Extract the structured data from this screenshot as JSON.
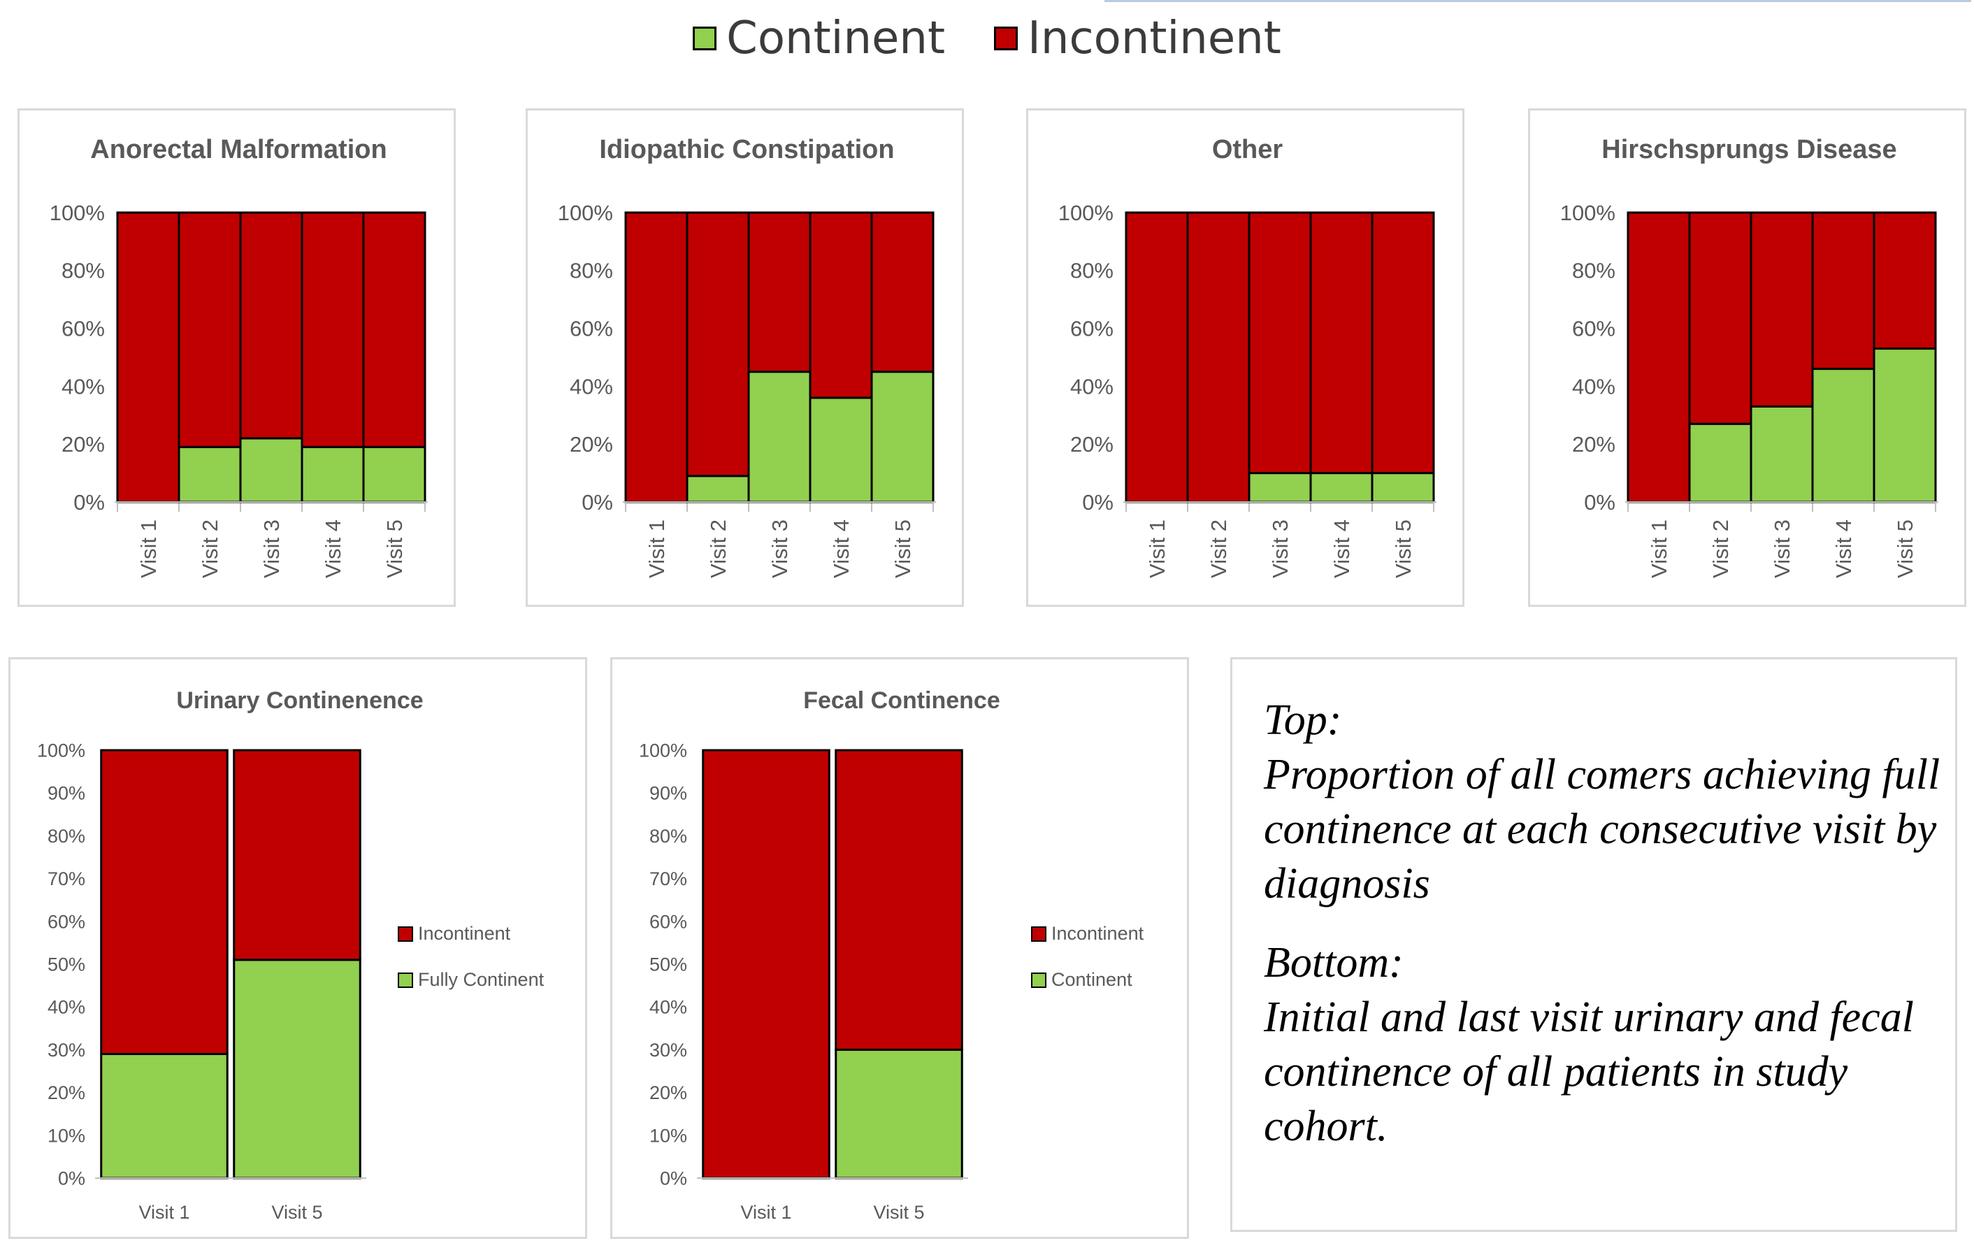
{
  "colors": {
    "continent": "#92d050",
    "incontinent": "#c00000",
    "bar_edge": "#000000"
  },
  "legend": {
    "continent_label": "Continent",
    "incontinent_label": "Incontinent"
  },
  "caption": {
    "top_heading": "Top:",
    "top_text": "Proportion of all comers achieving full continence at each consecutive visit by diagnosis",
    "bottom_heading": "Bottom:",
    "bottom_text": "Initial and last visit urinary and fecal continence of all patients in study cohort."
  },
  "chart_data": [
    {
      "type": "bar",
      "stacked": true,
      "percent": true,
      "title": "Anorectal Malformation",
      "categories": [
        "Visit 1",
        "Visit 2",
        "Visit 3",
        "Visit 4",
        "Visit 5"
      ],
      "series": [
        {
          "name": "Continent",
          "values": [
            0,
            19,
            22,
            19,
            19
          ]
        },
        {
          "name": "Incontinent",
          "values": [
            100,
            81,
            78,
            81,
            81
          ]
        }
      ],
      "y_ticks": [
        "0%",
        "20%",
        "40%",
        "60%",
        "80%",
        "100%"
      ],
      "ylim": [
        0,
        100
      ]
    },
    {
      "type": "bar",
      "stacked": true,
      "percent": true,
      "title": "Idiopathic Constipation",
      "categories": [
        "Visit 1",
        "Visit 2",
        "Visit 3",
        "Visit 4",
        "Visit 5"
      ],
      "series": [
        {
          "name": "Continent",
          "values": [
            0,
            9,
            45,
            36,
            45
          ]
        },
        {
          "name": "Incontinent",
          "values": [
            100,
            91,
            55,
            64,
            55
          ]
        }
      ],
      "y_ticks": [
        "0%",
        "20%",
        "40%",
        "60%",
        "80%",
        "100%"
      ],
      "ylim": [
        0,
        100
      ]
    },
    {
      "type": "bar",
      "stacked": true,
      "percent": true,
      "title": "Other",
      "categories": [
        "Visit 1",
        "Visit 2",
        "Visit 3",
        "Visit 4",
        "Visit 5"
      ],
      "series": [
        {
          "name": "Continent",
          "values": [
            0,
            0,
            10,
            10,
            10
          ]
        },
        {
          "name": "Incontinent",
          "values": [
            100,
            100,
            90,
            90,
            90
          ]
        }
      ],
      "y_ticks": [
        "0%",
        "20%",
        "40%",
        "60%",
        "80%",
        "100%"
      ],
      "ylim": [
        0,
        100
      ]
    },
    {
      "type": "bar",
      "stacked": true,
      "percent": true,
      "title": "Hirschsprungs Disease",
      "categories": [
        "Visit 1",
        "Visit 2",
        "Visit 3",
        "Visit 4",
        "Visit 5"
      ],
      "series": [
        {
          "name": "Continent",
          "values": [
            0,
            27,
            33,
            46,
            53
          ]
        },
        {
          "name": "Incontinent",
          "values": [
            100,
            73,
            67,
            54,
            47
          ]
        }
      ],
      "y_ticks": [
        "0%",
        "20%",
        "40%",
        "60%",
        "80%",
        "100%"
      ],
      "ylim": [
        0,
        100
      ]
    },
    {
      "type": "bar",
      "stacked": true,
      "percent": true,
      "title": "Urinary Continenence",
      "categories": [
        "Visit 1",
        "Visit 5"
      ],
      "series": [
        {
          "name": "Fully Continent",
          "values": [
            29,
            51
          ]
        },
        {
          "name": "Incontinent",
          "values": [
            71,
            49
          ]
        }
      ],
      "legend": {
        "position": "right",
        "entries": [
          "Incontinent",
          "Fully Continent"
        ]
      },
      "y_ticks": [
        "0%",
        "10%",
        "20%",
        "30%",
        "40%",
        "50%",
        "60%",
        "70%",
        "80%",
        "90%",
        "100%"
      ],
      "ylim": [
        0,
        100
      ]
    },
    {
      "type": "bar",
      "stacked": true,
      "percent": true,
      "title": "Fecal Continence",
      "categories": [
        "Visit 1",
        "Visit 5"
      ],
      "series": [
        {
          "name": "Continent",
          "values": [
            0,
            30
          ]
        },
        {
          "name": "Incontinent",
          "values": [
            100,
            70
          ]
        }
      ],
      "legend": {
        "position": "right",
        "entries": [
          "Incontinent",
          "Continent"
        ]
      },
      "y_ticks": [
        "0%",
        "10%",
        "20%",
        "30%",
        "40%",
        "50%",
        "60%",
        "70%",
        "80%",
        "90%",
        "100%"
      ],
      "ylim": [
        0,
        100
      ]
    }
  ]
}
